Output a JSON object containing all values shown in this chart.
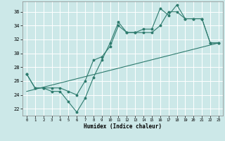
{
  "title": "",
  "xlabel": "Humidex (Indice chaleur)",
  "bg_color": "#cce8e8",
  "grid_color": "#ffffff",
  "line_color": "#2e7b6e",
  "xlim": [
    -0.5,
    23.5
  ],
  "ylim": [
    21.0,
    37.5
  ],
  "yticks": [
    22,
    24,
    26,
    28,
    30,
    32,
    34,
    36
  ],
  "xticks": [
    0,
    1,
    2,
    3,
    4,
    5,
    6,
    7,
    8,
    9,
    10,
    11,
    12,
    13,
    14,
    15,
    16,
    17,
    18,
    19,
    20,
    21,
    22,
    23
  ],
  "line1_x": [
    0,
    1,
    2,
    3,
    4,
    5,
    6,
    7,
    8,
    9,
    10,
    11,
    12,
    13,
    14,
    15,
    16,
    17,
    18,
    19,
    20,
    21,
    22,
    23
  ],
  "line1_y": [
    27.0,
    25.0,
    25.0,
    24.5,
    24.5,
    23.0,
    21.5,
    23.5,
    26.5,
    29.0,
    31.5,
    34.5,
    33.0,
    33.0,
    33.5,
    33.5,
    36.5,
    35.5,
    37.0,
    35.0,
    35.0,
    35.0,
    31.5,
    31.5
  ],
  "line2_x": [
    0,
    1,
    2,
    3,
    4,
    5,
    6,
    7,
    8,
    9,
    10,
    11,
    12,
    13,
    14,
    15,
    16,
    17,
    18,
    19,
    20,
    21,
    22,
    23
  ],
  "line2_y": [
    27.0,
    25.0,
    25.0,
    25.0,
    25.0,
    24.5,
    24.0,
    26.0,
    29.0,
    29.5,
    31.0,
    34.0,
    33.0,
    33.0,
    33.0,
    33.0,
    34.0,
    36.0,
    36.0,
    35.0,
    35.0,
    35.0,
    31.5,
    31.5
  ],
  "line3_x": [
    0,
    23
  ],
  "line3_y": [
    24.5,
    31.5
  ]
}
